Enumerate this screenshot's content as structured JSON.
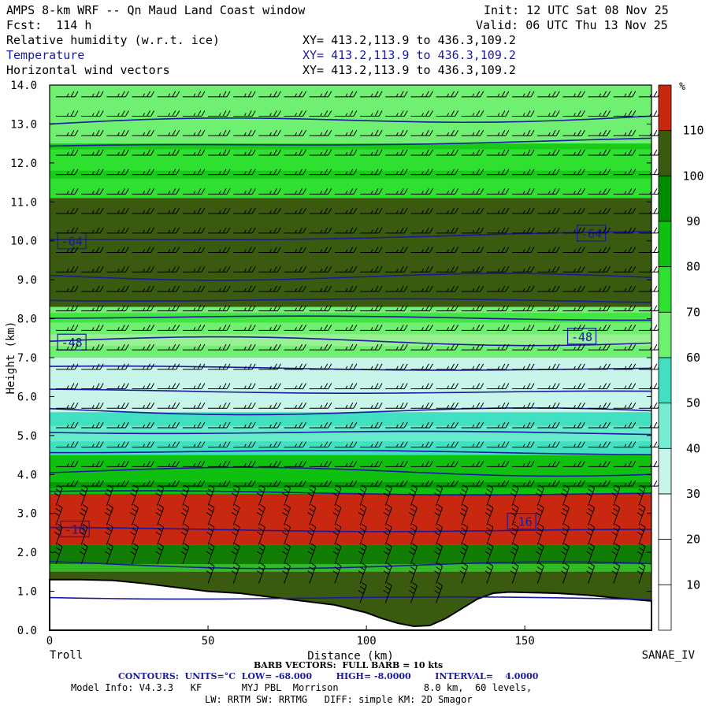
{
  "header": {
    "title": "AMPS 8-km WRF -- Qn Maud Land Coast window",
    "init": "Init: 12 UTC Sat 08 Nov 25",
    "fcst": "Fcst:  114 h",
    "valid": "Valid: 06 UTC Thu 13 Nov 25",
    "fields": [
      {
        "name": "Relative humidity (w.r.t. ice)",
        "xy": "XY= 413.2,113.9 to 436.3,109.2"
      },
      {
        "name": "Temperature",
        "xy": "XY= 413.2,113.9 to 436.3,109.2"
      },
      {
        "name": "Horizontal wind vectors",
        "xy": "XY= 413.2,113.9 to 436.3,109.2"
      }
    ]
  },
  "chart_data": {
    "type": "area",
    "subtype": "vertical cross-section (filled contours + line contours + wind barbs)",
    "xlabel": "Distance (km)",
    "ylabel": "Height (km)",
    "xlim": [
      0,
      190
    ],
    "ylim": [
      0,
      14
    ],
    "x_ticks": [
      0,
      50,
      100,
      150
    ],
    "y_ticks": [
      "0.0",
      "1.0",
      "2.0",
      "3.0",
      "4.0",
      "5.0",
      "6.0",
      "7.0",
      "8.0",
      "9.0",
      "10.0",
      "11.0",
      "12.0",
      "13.0",
      "14.0"
    ],
    "left_end_label": "Troll",
    "right_end_label": "SANAE_IV",
    "colorbar": {
      "unit": "%",
      "ticks": [
        "10",
        "20",
        "30",
        "40",
        "50",
        "60",
        "70",
        "80",
        "90",
        "100",
        "110"
      ],
      "colors": [
        "#ffffff",
        "#ffffff",
        "#ffffff",
        "#c8f5ea",
        "#78ecd2",
        "#40e0c0",
        "#70f070",
        "#30e030",
        "#10c010",
        "#008c00",
        "#3a5a10",
        "#c82810"
      ]
    },
    "humidity_layers_km": [
      {
        "bottom": 12.5,
        "top": 14.0,
        "rh_class": 70
      },
      {
        "bottom": 11.1,
        "top": 12.5,
        "rh_class": 80
      },
      {
        "bottom": 8.3,
        "top": 11.1,
        "rh_class": 100
      },
      {
        "bottom": 7.0,
        "top": 8.3,
        "rh_class": 70
      },
      {
        "bottom": 5.6,
        "top": 7.0,
        "rh_class": 30
      },
      {
        "bottom": 4.5,
        "top": 5.6,
        "rh_class": 50
      },
      {
        "bottom": 3.5,
        "top": 4.5,
        "rh_class": 90
      },
      {
        "bottom": 2.2,
        "top": 3.5,
        "rh_class": 110
      },
      {
        "bottom": 0.0,
        "top": 2.2,
        "rh_class": 100
      }
    ],
    "temperature_contours": {
      "unit": "°C",
      "labels": [
        {
          "text": "-64",
          "x": 7,
          "y": 10.0
        },
        {
          "text": "-64",
          "x": 171,
          "y": 10.2
        },
        {
          "text": "-48",
          "x": 7,
          "y": 7.4
        },
        {
          "text": "-48",
          "x": 168,
          "y": 7.55
        },
        {
          "text": "-16",
          "x": 8,
          "y": 2.6
        },
        {
          "text": "-16",
          "x": 149,
          "y": 2.8
        }
      ],
      "low": "-68.000",
      "high": "-8.0000",
      "interval": "4.0000"
    },
    "terrain_km": {
      "x": [
        0,
        10,
        20,
        30,
        40,
        50,
        60,
        70,
        80,
        90,
        100,
        105,
        110,
        115,
        120,
        125,
        130,
        135,
        140,
        145,
        150,
        160,
        170,
        180,
        190
      ],
      "y": [
        1.3,
        1.3,
        1.28,
        1.2,
        1.1,
        1.0,
        0.95,
        0.85,
        0.75,
        0.65,
        0.45,
        0.3,
        0.18,
        0.1,
        0.12,
        0.3,
        0.55,
        0.8,
        0.95,
        0.98,
        0.97,
        0.95,
        0.9,
        0.82,
        0.75
      ]
    },
    "wind_barb_levels_km": [
      0.7,
      1.2,
      1.7,
      2.2,
      2.7,
      3.2,
      3.7,
      4.2,
      4.7,
      5.2,
      5.7,
      6.2,
      6.7,
      7.2,
      7.7,
      8.2,
      8.7,
      9.2,
      9.7,
      10.2,
      10.7,
      11.2,
      11.7,
      12.2,
      12.7,
      13.2,
      13.7
    ]
  },
  "footer": {
    "barb_note": "BARB VECTORS:  FULL BARB = 10 kts",
    "contour_note": "CONTOURS:  UNITS=°C  LOW= -68.000        HIGH= -8.0000        INTERVAL=    4.0000",
    "model_info": "Model Info: V4.3.3   KF       MYJ PBL  Morrison               8.0 km,  60 levels,",
    "model_info2": "LW: RRTM SW: RRTMG   DIFF: simple KM: 2D Smagor"
  }
}
